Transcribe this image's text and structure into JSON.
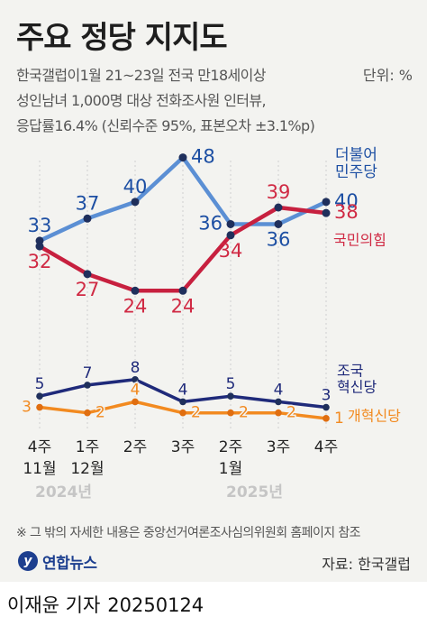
{
  "title": "주요 정당 지지도",
  "subtitle_lines": [
    "한국갤럽이1월 21~23일 전국 만18세이상",
    "성인남녀 1,000명 대상 전화조사원 인터뷰,",
    "응답률16.4% (신뢰수준 95%, 표본오차 ±3.1%p)"
  ],
  "unit": "단위: %",
  "footnote": "※ 그 밖의 자세한 내용은 중앙선거여론조사심의위원회 홈페이지 참조",
  "logo_text": "연합뉴스",
  "logo_mark": "y",
  "source": "자료: 한국갤럽",
  "byline": {
    "reporter": "이재윤 기자",
    "date": "20250124"
  },
  "colors": {
    "background": "#f3f3f0",
    "democratic": "#5b8fd4",
    "democratic_text": "#1d4fa3",
    "ppp": "#c7203f",
    "ppp_text": "#d02a44",
    "rebuild": "#1f2a7a",
    "reform": "#f28a20",
    "marker": "#1f2f5c",
    "year_label": "#c5c5c5"
  },
  "chart_data": {
    "type": "line",
    "categories": [
      [
        "4주",
        "11월"
      ],
      [
        "1주",
        "12월"
      ],
      [
        "2주",
        ""
      ],
      [
        "3주",
        ""
      ],
      [
        "2주",
        "1월"
      ],
      [
        "3주",
        ""
      ],
      [
        "4주",
        ""
      ]
    ],
    "year_labels": [
      {
        "text": "2024년",
        "index": 0.5
      },
      {
        "text": "2025년",
        "index": 4.5
      }
    ],
    "ylim": [
      0,
      52
    ],
    "series": [
      {
        "name": "더불어\n민주당",
        "values": [
          33,
          37,
          40,
          48,
          36,
          36,
          40
        ],
        "color_key": "democratic",
        "text_key": "democratic_text",
        "label_pos": [
          "above",
          "above",
          "above",
          "right",
          "left",
          "below",
          "right"
        ]
      },
      {
        "name": "국민의힘",
        "values": [
          32,
          27,
          24,
          24,
          34,
          39,
          38
        ],
        "color_key": "ppp",
        "text_key": "ppp_text",
        "label_pos": [
          "below",
          "below",
          "below",
          "below",
          "below",
          "above",
          "right"
        ]
      },
      {
        "name": "조국\n혁신당",
        "values": [
          5,
          7,
          8,
          4,
          5,
          4,
          3
        ],
        "color_key": "rebuild",
        "text_key": "rebuild",
        "label_pos": [
          "above",
          "above",
          "above",
          "above",
          "above",
          "above",
          "above"
        ]
      },
      {
        "name": "개혁신당",
        "values": [
          3,
          2,
          4,
          2,
          2,
          2,
          1
        ],
        "color_key": "reform",
        "text_key": "reform",
        "label_pos": [
          "left",
          "right",
          "above",
          "right",
          "right",
          "right",
          "right"
        ]
      }
    ]
  }
}
